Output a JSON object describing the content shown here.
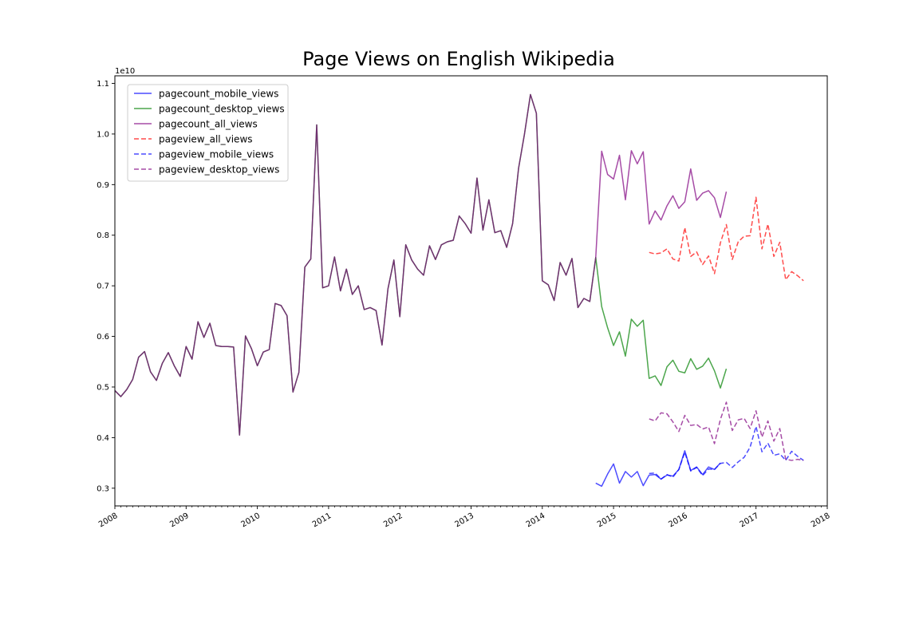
{
  "chart_data": {
    "type": "line",
    "title": "Page Views on English Wikipedia",
    "xlabel": "",
    "ylabel": "",
    "y_offset_label": "1e10",
    "xlim": [
      "2008-01",
      "2018-01"
    ],
    "ylim": [
      0.265,
      1.115
    ],
    "x_ticks": [
      "2008",
      "2009",
      "2010",
      "2011",
      "2012",
      "2013",
      "2014",
      "2015",
      "2016",
      "2017",
      "2018"
    ],
    "y_ticks": [
      "0.3",
      "0.4",
      "0.5",
      "0.6",
      "0.7",
      "0.8",
      "0.9",
      "1.0",
      "1.1"
    ],
    "grid": false,
    "legend_position": "upper-left",
    "series": [
      {
        "name": "pagecount_mobile_views",
        "color": "#0000ff",
        "dash": "solid",
        "start": "2014-10",
        "values": [
          0.31,
          0.304,
          0.328,
          0.348,
          0.31,
          0.333,
          0.322,
          0.333,
          0.305,
          0.326,
          0.327,
          0.318,
          0.326,
          0.324,
          0.337,
          0.374,
          0.335,
          0.342,
          0.327,
          0.342,
          0.337,
          0.35
        ]
      },
      {
        "name": "pagecount_desktop_views",
        "color": "#008000",
        "dash": "solid",
        "start": "2008-01",
        "values": [
          0.493,
          0.481,
          0.495,
          0.515,
          0.559,
          0.57,
          0.53,
          0.513,
          0.547,
          0.568,
          0.542,
          0.521,
          0.58,
          0.555,
          0.629,
          0.598,
          0.626,
          0.582,
          0.58,
          0.58,
          0.579,
          0.405,
          0.601,
          0.576,
          0.542,
          0.569,
          0.574,
          0.665,
          0.661,
          0.641,
          0.49,
          0.529,
          0.737,
          0.753,
          1.018,
          0.696,
          0.7,
          0.757,
          0.69,
          0.733,
          0.683,
          0.7,
          0.653,
          0.657,
          0.651,
          0.583,
          0.694,
          0.751,
          0.639,
          0.781,
          0.751,
          0.733,
          0.721,
          0.779,
          0.752,
          0.781,
          0.787,
          0.79,
          0.838,
          0.823,
          0.804,
          0.913,
          0.81,
          0.87,
          0.805,
          0.809,
          0.776,
          0.823,
          0.932,
          1.0,
          1.078,
          1.041,
          0.71,
          0.702,
          0.671,
          0.746,
          0.721,
          0.754,
          0.657,
          0.675,
          0.669,
          0.756,
          0.659,
          0.617,
          0.582,
          0.609,
          0.561,
          0.634,
          0.62,
          0.632,
          0.517,
          0.522,
          0.503,
          0.54,
          0.553,
          0.531,
          0.528,
          0.556,
          0.535,
          0.541,
          0.557,
          0.532,
          0.498,
          0.536
        ]
      },
      {
        "name": "pagecount_all_views",
        "color": "#800080",
        "dash": "solid",
        "start": "2008-01",
        "values": [
          0.493,
          0.481,
          0.495,
          0.515,
          0.559,
          0.57,
          0.53,
          0.513,
          0.547,
          0.568,
          0.542,
          0.521,
          0.58,
          0.555,
          0.629,
          0.598,
          0.626,
          0.582,
          0.58,
          0.58,
          0.579,
          0.405,
          0.601,
          0.576,
          0.542,
          0.569,
          0.574,
          0.665,
          0.661,
          0.641,
          0.49,
          0.529,
          0.737,
          0.753,
          1.018,
          0.696,
          0.7,
          0.757,
          0.69,
          0.733,
          0.683,
          0.7,
          0.653,
          0.657,
          0.651,
          0.583,
          0.694,
          0.751,
          0.639,
          0.781,
          0.751,
          0.733,
          0.721,
          0.779,
          0.752,
          0.781,
          0.787,
          0.79,
          0.838,
          0.823,
          0.804,
          0.913,
          0.81,
          0.87,
          0.805,
          0.809,
          0.776,
          0.823,
          0.932,
          1.0,
          1.078,
          1.041,
          0.71,
          0.702,
          0.671,
          0.746,
          0.721,
          0.754,
          0.657,
          0.675,
          0.669,
          0.756,
          0.966,
          0.92,
          0.911,
          0.958,
          0.87,
          0.967,
          0.941,
          0.965,
          0.822,
          0.848,
          0.83,
          0.858,
          0.878,
          0.853,
          0.866,
          0.931,
          0.869,
          0.883,
          0.888,
          0.874,
          0.835,
          0.886
        ]
      },
      {
        "name": "pageview_all_views",
        "color": "#ff0000",
        "dash": "dashed",
        "start": "2015-07",
        "values": [
          0.766,
          0.763,
          0.765,
          0.773,
          0.753,
          0.749,
          0.815,
          0.758,
          0.767,
          0.742,
          0.759,
          0.724,
          0.785,
          0.821,
          0.752,
          0.787,
          0.798,
          0.799,
          0.875,
          0.773,
          0.822,
          0.758,
          0.786,
          0.712,
          0.728,
          0.72,
          0.71
        ]
      },
      {
        "name": "pageview_mobile_views",
        "color": "#0000ff",
        "dash": "dashed",
        "start": "2015-07",
        "values": [
          0.329,
          0.33,
          0.318,
          0.327,
          0.322,
          0.337,
          0.371,
          0.334,
          0.341,
          0.325,
          0.338,
          0.337,
          0.349,
          0.351,
          0.341,
          0.352,
          0.361,
          0.381,
          0.422,
          0.372,
          0.389,
          0.365,
          0.368,
          0.355,
          0.373,
          0.363,
          0.355
        ]
      },
      {
        "name": "pageview_desktop_views",
        "color": "#800080",
        "dash": "dashed",
        "start": "2015-07",
        "values": [
          0.437,
          0.433,
          0.449,
          0.447,
          0.431,
          0.412,
          0.444,
          0.424,
          0.426,
          0.417,
          0.421,
          0.388,
          0.436,
          0.47,
          0.414,
          0.435,
          0.438,
          0.418,
          0.453,
          0.401,
          0.433,
          0.393,
          0.418,
          0.357,
          0.355,
          0.357,
          0.355
        ]
      }
    ]
  }
}
